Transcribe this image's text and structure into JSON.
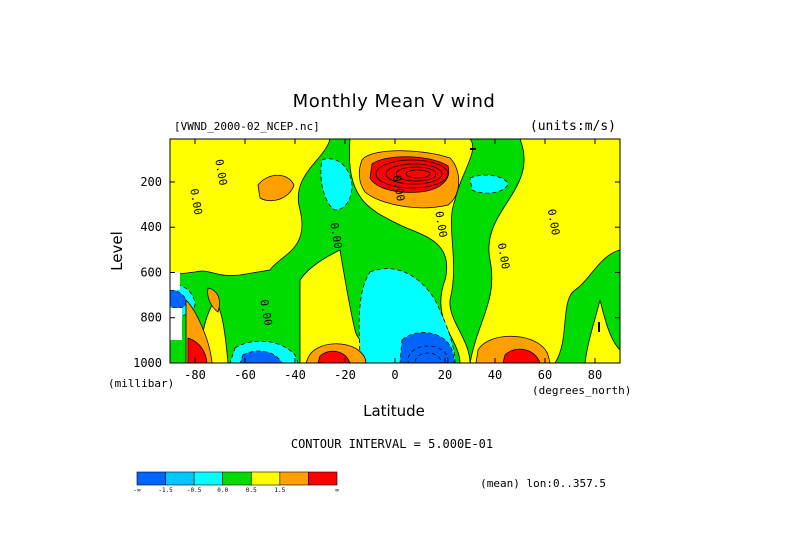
{
  "chart_data": {
    "type": "heatmap",
    "title": "Monthly Mean V wind",
    "dataset": "[VWND_2000-02_NCEP.nc]",
    "units": "(units:m/s)",
    "xlabel": "Latitude",
    "ylabel": "Level",
    "x_units": "(degrees_north)",
    "y_units": "(millibar)",
    "xlim": [
      -90,
      90
    ],
    "ylim": [
      1000,
      10
    ],
    "x_ticks": [
      "-80",
      "-60",
      "-40",
      "-20",
      "0",
      "20",
      "40",
      "60",
      "80"
    ],
    "x_tick_values": [
      -80,
      -60,
      -40,
      -20,
      0,
      20,
      40,
      60,
      80
    ],
    "y_ticks": [
      "200",
      "400",
      "600",
      "800",
      "1000"
    ],
    "y_tick_values": [
      200,
      400,
      600,
      800,
      1000
    ],
    "contour_interval": "CONTOUR INTERVAL = 5.000E-01",
    "average_note": "(mean) lon:0..357.5",
    "colorbar": {
      "labels": [
        "-∞",
        "-1.5",
        "-0.5",
        "0.0",
        "0.5",
        "1.5",
        "∞"
      ],
      "colors": [
        "#0064ff",
        "#00c8ff",
        "#00ffff",
        "#00dc00",
        "#ffff00",
        "#ffa000",
        "#ff0000"
      ]
    },
    "contour_labels": [
      {
        "text": "0.00",
        "lat": -81,
        "lev": 290
      },
      {
        "text": "0.00",
        "lat": -71,
        "lev": 160
      },
      {
        "text": "0.00",
        "lat": -53,
        "lev": 780
      },
      {
        "text": "0.00",
        "lat": -25,
        "lev": 440
      },
      {
        "text": "0.00",
        "lat": 0,
        "lev": 230
      },
      {
        "text": "0.00",
        "lat": 17,
        "lev": 390
      },
      {
        "text": "0.00",
        "lat": 42,
        "lev": 530
      },
      {
        "text": "0.00",
        "lat": 62,
        "lev": 380
      }
    ],
    "features": [
      {
        "kind": "max",
        "value": 1.5,
        "lat": 12,
        "lev": 160,
        "lat_rx": 14,
        "lev_r": 90
      },
      {
        "kind": "min",
        "value": -0.5,
        "lat": 18,
        "lev": 940,
        "lat_rx": 8,
        "lev_r": 60
      },
      {
        "kind": "max",
        "value": 1.0,
        "lat": 52,
        "lev": 970,
        "lat_rx": 7,
        "lev_r": 40
      },
      {
        "kind": "max",
        "value": 1.0,
        "lat": -25,
        "lev": 975,
        "lat_rx": 9,
        "lev_r": 40
      },
      {
        "kind": "min",
        "value": -0.5,
        "lat": -55,
        "lev": 975,
        "lat_rx": 9,
        "lev_r": 40
      },
      {
        "kind": "max",
        "value": 1.0,
        "lat": -84,
        "lev": 960,
        "lat_rx": 3,
        "lev_r": 60
      },
      {
        "kind": "min",
        "value": -0.5,
        "lat": -85,
        "lev": 700,
        "lat_rx": 3,
        "lev_r": 50
      },
      {
        "kind": "max",
        "value": 0.5,
        "lat": -46,
        "lev": 220,
        "lat_rx": 6,
        "lev_r": 70
      },
      {
        "kind": "min",
        "value": -0.5,
        "lat": -28,
        "lev": 200,
        "lat_rx": 8,
        "lev_r": 90
      },
      {
        "kind": "min",
        "value": -0.5,
        "lat": 40,
        "lev": 170,
        "lat_rx": 6,
        "lev_r": 30
      }
    ],
    "grid": false
  }
}
